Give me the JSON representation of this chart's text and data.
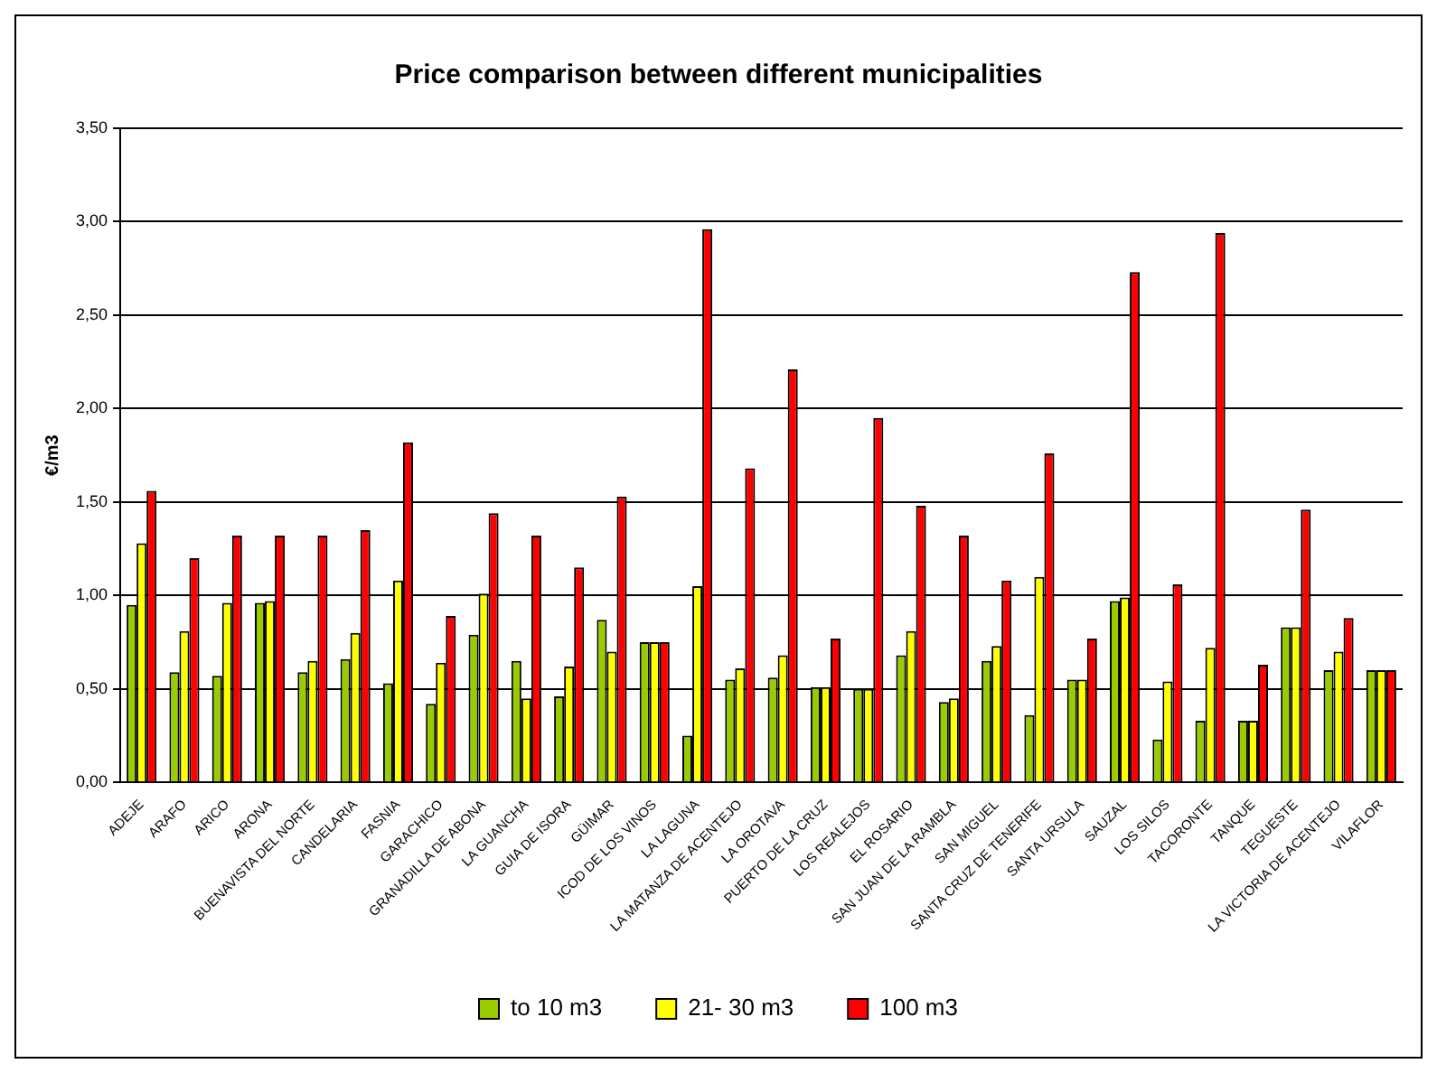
{
  "chart_data": {
    "type": "bar",
    "title": "Price comparison between different municipalities",
    "ylabel": "€/m3",
    "categories": [
      "ADEJE",
      "ARAFO",
      "ARICO",
      "ARONA",
      "BUENAVISTA DEL NORTE",
      "CANDELARIA",
      "FASNIA",
      "GARACHICO",
      "GRANADILLA DE ABONA",
      "LA GUANCHA",
      "GUIA DE ISORA",
      "GÜIMAR",
      "ICOD DE LOS VINOS",
      "LA LAGUNA",
      "LA MATANZA DE ACENTEJO",
      "LA OROTAVA",
      "PUERTO DE LA CRUZ",
      "LOS REALEJOS",
      "EL ROSARIO",
      "SAN JUAN DE LA RAMBLA",
      "SAN MIGUEL",
      "SANTA CRUZ DE TENERIFE",
      "SANTA URSULA",
      "SAUZAL",
      "LOS SILOS",
      "TACORONTE",
      "TANQUE",
      "TEGUESTE",
      "LA VICTORIA DE ACENTEJO",
      "VILAFLOR"
    ],
    "series": [
      {
        "name": "to 10 m3",
        "color": "#99cc00",
        "values": [
          0.95,
          0.59,
          0.57,
          0.96,
          0.59,
          0.66,
          0.53,
          0.42,
          0.79,
          0.65,
          0.46,
          0.87,
          0.75,
          0.25,
          0.55,
          0.56,
          0.51,
          0.5,
          0.68,
          0.43,
          0.65,
          0.36,
          0.55,
          0.97,
          0.23,
          0.33,
          0.33,
          0.83,
          0.6,
          0.6
        ]
      },
      {
        "name": "21- 30 m3",
        "color": "#ffff00",
        "values": [
          1.28,
          0.81,
          0.96,
          0.97,
          0.65,
          0.8,
          1.08,
          0.64,
          1.01,
          0.45,
          0.62,
          0.7,
          0.75,
          1.05,
          0.61,
          0.68,
          0.51,
          0.5,
          0.81,
          0.45,
          0.73,
          1.1,
          0.55,
          0.99,
          0.54,
          0.72,
          0.33,
          0.83,
          0.7,
          0.6
        ]
      },
      {
        "name": "100 m3",
        "color": "#ff0000",
        "values": [
          1.56,
          1.2,
          1.32,
          1.32,
          1.32,
          1.35,
          1.82,
          0.89,
          1.44,
          1.32,
          1.15,
          1.53,
          0.75,
          2.96,
          1.68,
          2.21,
          0.77,
          1.95,
          1.48,
          1.32,
          1.08,
          1.76,
          0.77,
          2.73,
          1.06,
          2.94,
          0.63,
          1.46,
          0.88,
          0.6
        ]
      }
    ],
    "ylim": [
      0,
      3.5
    ],
    "yticks": [
      {
        "value": 0,
        "label": "0,00"
      },
      {
        "value": 0.5,
        "label": "0,50"
      },
      {
        "value": 1,
        "label": "1,00"
      },
      {
        "value": 1.5,
        "label": "1,50"
      },
      {
        "value": 2,
        "label": "2,00"
      },
      {
        "value": 2.5,
        "label": "2,50"
      },
      {
        "value": 3,
        "label": "3,00"
      },
      {
        "value": 3.5,
        "label": "3,50"
      }
    ],
    "grid": "y",
    "legend": "bottom"
  }
}
